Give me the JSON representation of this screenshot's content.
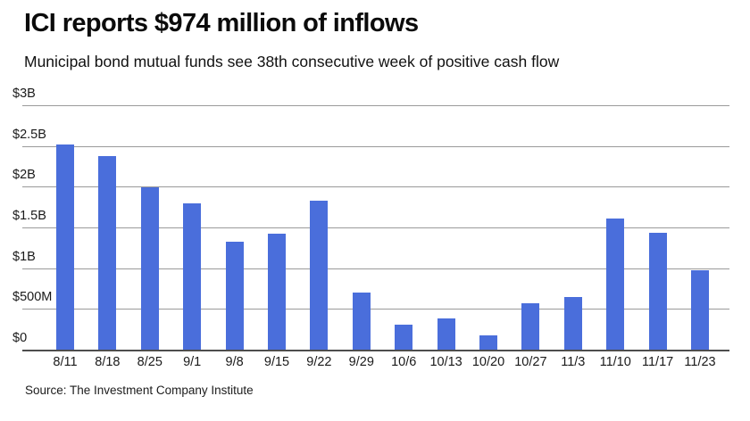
{
  "header": {
    "title": "ICI reports $974 million of inflows",
    "subtitle": "Municipal bond mutual funds see 38th consecutive week of positive cash flow"
  },
  "footer": {
    "source": "Source: The Investment Company Institute"
  },
  "chart_data": {
    "type": "bar",
    "title": "ICI reports $974 million of inflows",
    "subtitle": "Municipal bond mutual funds see 38th consecutive week of positive cash flow",
    "xlabel": "",
    "ylabel": "",
    "categories": [
      "8/11",
      "8/18",
      "8/25",
      "9/1",
      "9/8",
      "9/15",
      "9/22",
      "9/29",
      "10/6",
      "10/13",
      "10/20",
      "10/27",
      "11/3",
      "11/10",
      "11/17",
      "11/23"
    ],
    "values_billions": [
      2.52,
      2.38,
      1.99,
      1.8,
      1.33,
      1.42,
      1.83,
      0.7,
      0.31,
      0.38,
      0.18,
      0.57,
      0.65,
      1.61,
      1.43,
      0.974
    ],
    "ylim": [
      0,
      3
    ],
    "yticks": {
      "values": [
        3,
        2.5,
        2,
        1.5,
        1,
        0.5,
        0
      ],
      "labels": [
        "$3B",
        "$2.5B",
        "$2B",
        "$1.5B",
        "$1B",
        "$500M",
        "$0"
      ]
    },
    "grid": true,
    "legend": false,
    "colors": {
      "bar": "#4a6edb",
      "gridline": "#9a9a9a",
      "axis_line": "#4d4d4d",
      "text": "#1a1a1a"
    }
  }
}
